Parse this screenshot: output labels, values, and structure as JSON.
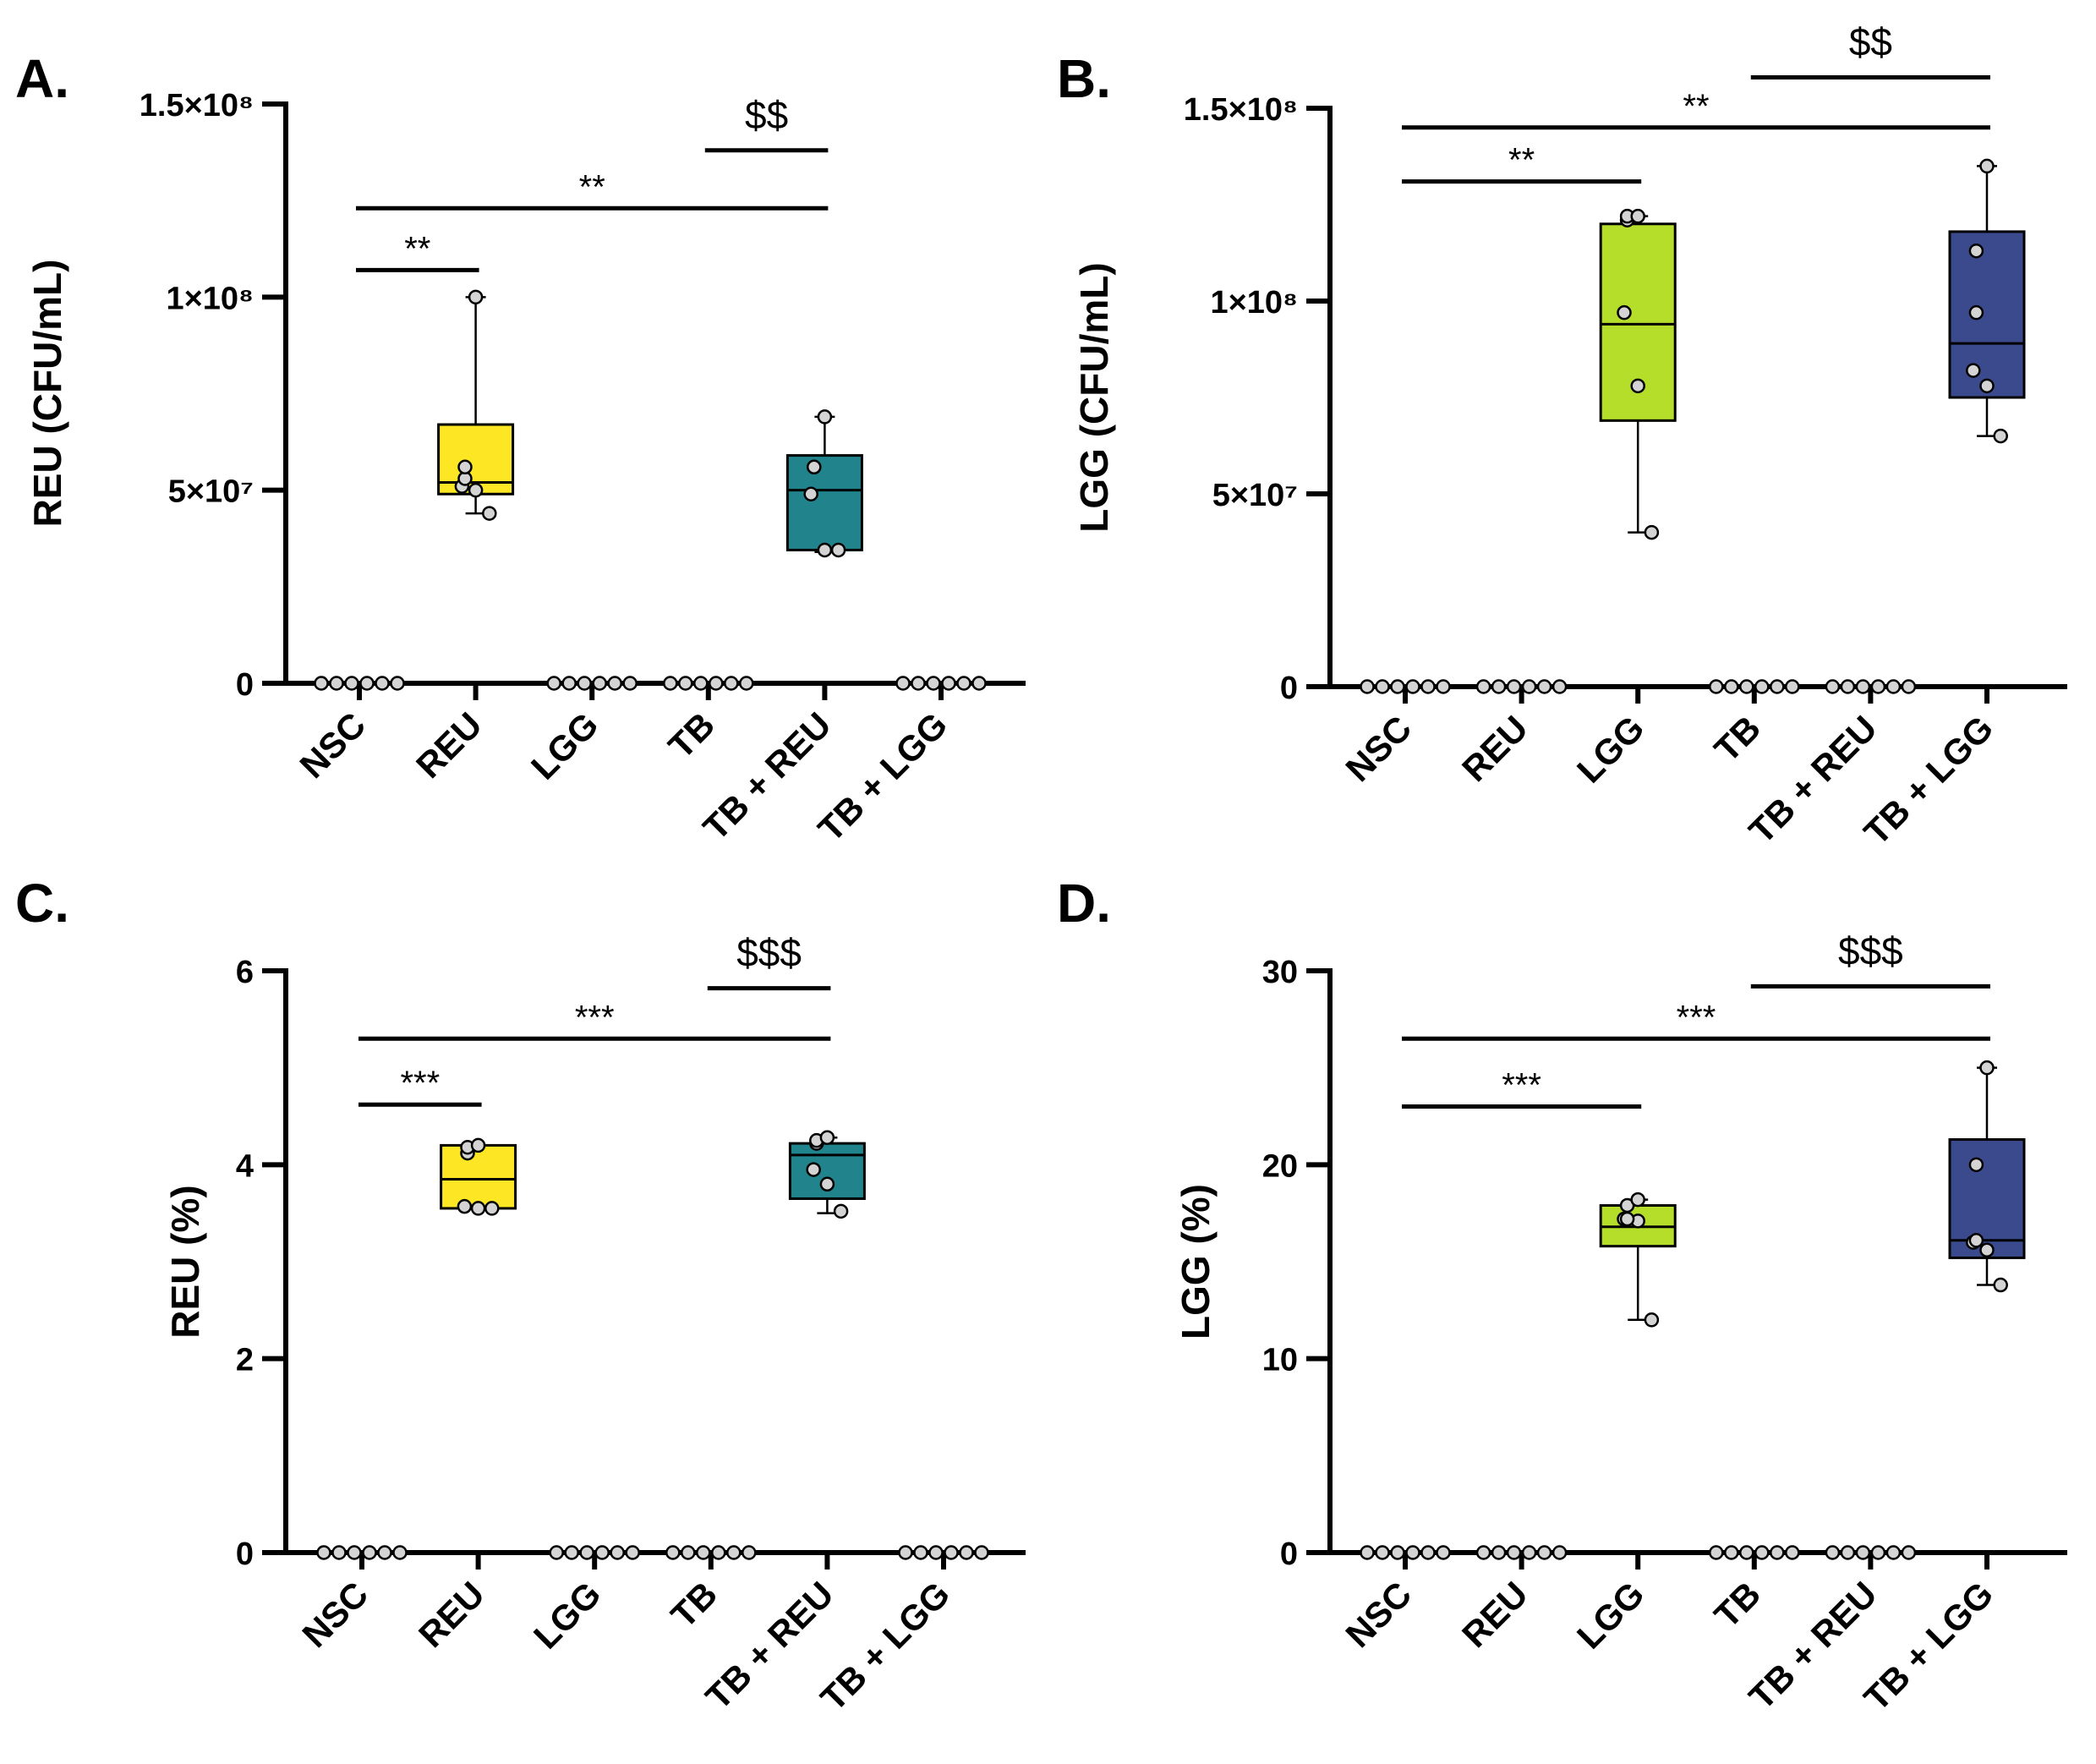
{
  "chart_data": [
    {
      "id": "A",
      "panel_label": "A.",
      "type": "box",
      "ylabel": "REU (CFU/mL)",
      "ylim": [
        0,
        150000000
      ],
      "yticks": [
        0,
        50000000,
        100000000,
        150000000
      ],
      "ytick_labels": [
        "0",
        "5×10⁷",
        "1×10⁸",
        "1.5×10⁸"
      ],
      "categories": [
        "NSC",
        "REU",
        "LGG",
        "TB",
        "TB + REU",
        "TB + LGG"
      ],
      "colors": [
        "#ffffff",
        "#fde725",
        "#ffffff",
        "#ffffff",
        "#21838c",
        "#ffffff"
      ],
      "boxes": [
        null,
        {
          "min": 44000000,
          "q1": 49000000,
          "median": 52000000,
          "q3": 67000000,
          "max": 100000000
        },
        null,
        null,
        {
          "min": 34000000,
          "q1": 34500000,
          "median": 50000000,
          "q3": 59000000,
          "max": 69000000
        },
        null
      ],
      "points": [
        [
          0,
          0,
          0,
          0,
          0,
          0
        ],
        [
          44000000,
          50000000,
          51000000,
          53000000,
          56000000,
          100000000
        ],
        [
          0,
          0,
          0,
          0,
          0,
          0
        ],
        [
          0,
          0,
          0,
          0,
          0,
          0
        ],
        [
          34500000,
          34500000,
          49000000,
          56000000,
          56000000,
          69000000
        ],
        [
          0,
          0,
          0,
          0,
          0,
          0
        ]
      ],
      "significance": [
        {
          "from": 0,
          "to": 1,
          "label": "**",
          "y": 107000000,
          "kind": "star"
        },
        {
          "from": 0,
          "to": 4,
          "label": "**",
          "y": 123000000,
          "kind": "star"
        },
        {
          "from": 3,
          "to": 4,
          "label": "$$",
          "y": 138000000,
          "kind": "dollar"
        }
      ]
    },
    {
      "id": "B",
      "panel_label": "B.",
      "type": "box",
      "ylabel": "LGG (CFU/mL)",
      "ylim": [
        0,
        150000000
      ],
      "yticks": [
        0,
        50000000,
        100000000,
        150000000
      ],
      "ytick_labels": [
        "0",
        "5×10⁷",
        "1×10⁸",
        "1.5×10⁸"
      ],
      "categories": [
        "NSC",
        "REU",
        "LGG",
        "TB",
        "TB + REU",
        "TB + LGG"
      ],
      "colors": [
        "#ffffff",
        "#ffffff",
        "#b5de2b",
        "#ffffff",
        "#ffffff",
        "#3b4a8c"
      ],
      "boxes": [
        null,
        null,
        {
          "min": 40000000,
          "q1": 69000000,
          "median": 94000000,
          "q3": 120000000,
          "max": 122000000
        },
        null,
        null,
        {
          "min": 65000000,
          "q1": 75000000,
          "median": 89000000,
          "q3": 118000000,
          "max": 135000000
        }
      ],
      "points": [
        [
          0,
          0,
          0,
          0,
          0,
          0
        ],
        [
          0,
          0,
          0,
          0,
          0,
          0
        ],
        [
          40000000,
          78000000,
          97000000,
          121000000,
          122000000,
          122000000
        ],
        [
          0,
          0,
          0,
          0,
          0,
          0
        ],
        [
          0,
          0,
          0,
          0,
          0,
          0
        ],
        [
          65000000,
          78000000,
          82000000,
          97000000,
          113000000,
          135000000
        ]
      ],
      "significance": [
        {
          "from": 0,
          "to": 2,
          "label": "**",
          "y": 131000000,
          "kind": "star"
        },
        {
          "from": 0,
          "to": 5,
          "label": "**",
          "y": 145000000,
          "kind": "star"
        },
        {
          "from": 3,
          "to": 5,
          "label": "$$",
          "y": 158000000,
          "kind": "dollar"
        }
      ]
    },
    {
      "id": "C",
      "panel_label": "C.",
      "type": "box",
      "ylabel": "REU (%)",
      "ylim": [
        0,
        6
      ],
      "yticks": [
        0,
        2,
        4,
        6
      ],
      "ytick_labels": [
        "0",
        "2",
        "4",
        "6"
      ],
      "categories": [
        "NSC",
        "REU",
        "LGG",
        "TB",
        "TB + REU",
        "TB + LGG"
      ],
      "colors": [
        "#ffffff",
        "#fde725",
        "#ffffff",
        "#ffffff",
        "#21838c",
        "#ffffff"
      ],
      "boxes": [
        null,
        {
          "min": 3.55,
          "q1": 3.55,
          "median": 3.85,
          "q3": 4.2,
          "max": 4.2
        },
        null,
        null,
        {
          "min": 3.5,
          "q1": 3.65,
          "median": 4.1,
          "q3": 4.22,
          "max": 4.28
        },
        null
      ],
      "points": [
        [
          0,
          0,
          0,
          0,
          0,
          0
        ],
        [
          3.55,
          3.55,
          3.57,
          4.12,
          4.18,
          4.2
        ],
        [
          0,
          0,
          0,
          0,
          0,
          0
        ],
        [
          0,
          0,
          0,
          0,
          0,
          0
        ],
        [
          3.52,
          3.8,
          3.95,
          4.22,
          4.25,
          4.28
        ],
        [
          0,
          0,
          0,
          0,
          0,
          0
        ]
      ],
      "significance": [
        {
          "from": 0,
          "to": 1,
          "label": "***",
          "y": 4.62,
          "kind": "star"
        },
        {
          "from": 0,
          "to": 4,
          "label": "***",
          "y": 5.3,
          "kind": "star"
        },
        {
          "from": 3,
          "to": 4,
          "label": "$$$",
          "y": 5.82,
          "kind": "dollar"
        }
      ]
    },
    {
      "id": "D",
      "panel_label": "D.",
      "type": "box",
      "ylabel": "LGG (%)",
      "ylim": [
        0,
        30
      ],
      "yticks": [
        0,
        10,
        20,
        30
      ],
      "ytick_labels": [
        "0",
        "10",
        "20",
        "30"
      ],
      "categories": [
        "NSC",
        "REU",
        "LGG",
        "TB",
        "TB + REU",
        "TB + LGG"
      ],
      "colors": [
        "#ffffff",
        "#ffffff",
        "#b5de2b",
        "#ffffff",
        "#ffffff",
        "#3b4a8c"
      ],
      "boxes": [
        null,
        null,
        {
          "min": 12.0,
          "q1": 15.8,
          "median": 16.8,
          "q3": 17.9,
          "max": 18.2
        },
        null,
        null,
        {
          "min": 13.8,
          "q1": 15.2,
          "median": 16.1,
          "q3": 21.3,
          "max": 25.0
        }
      ],
      "points": [
        [
          0,
          0,
          0,
          0,
          0,
          0
        ],
        [
          0,
          0,
          0,
          0,
          0,
          0
        ],
        [
          12.0,
          17.1,
          17.2,
          17.2,
          17.9,
          18.2
        ],
        [
          0,
          0,
          0,
          0,
          0,
          0
        ],
        [
          0,
          0,
          0,
          0,
          0,
          0
        ],
        [
          13.8,
          15.6,
          16.0,
          16.1,
          20.0,
          25.0
        ]
      ],
      "significance": [
        {
          "from": 0,
          "to": 2,
          "label": "***",
          "y": 23.0,
          "kind": "star"
        },
        {
          "from": 0,
          "to": 5,
          "label": "***",
          "y": 26.5,
          "kind": "star"
        },
        {
          "from": 3,
          "to": 5,
          "label": "$$$",
          "y": 29.2,
          "kind": "dollar"
        }
      ]
    }
  ]
}
